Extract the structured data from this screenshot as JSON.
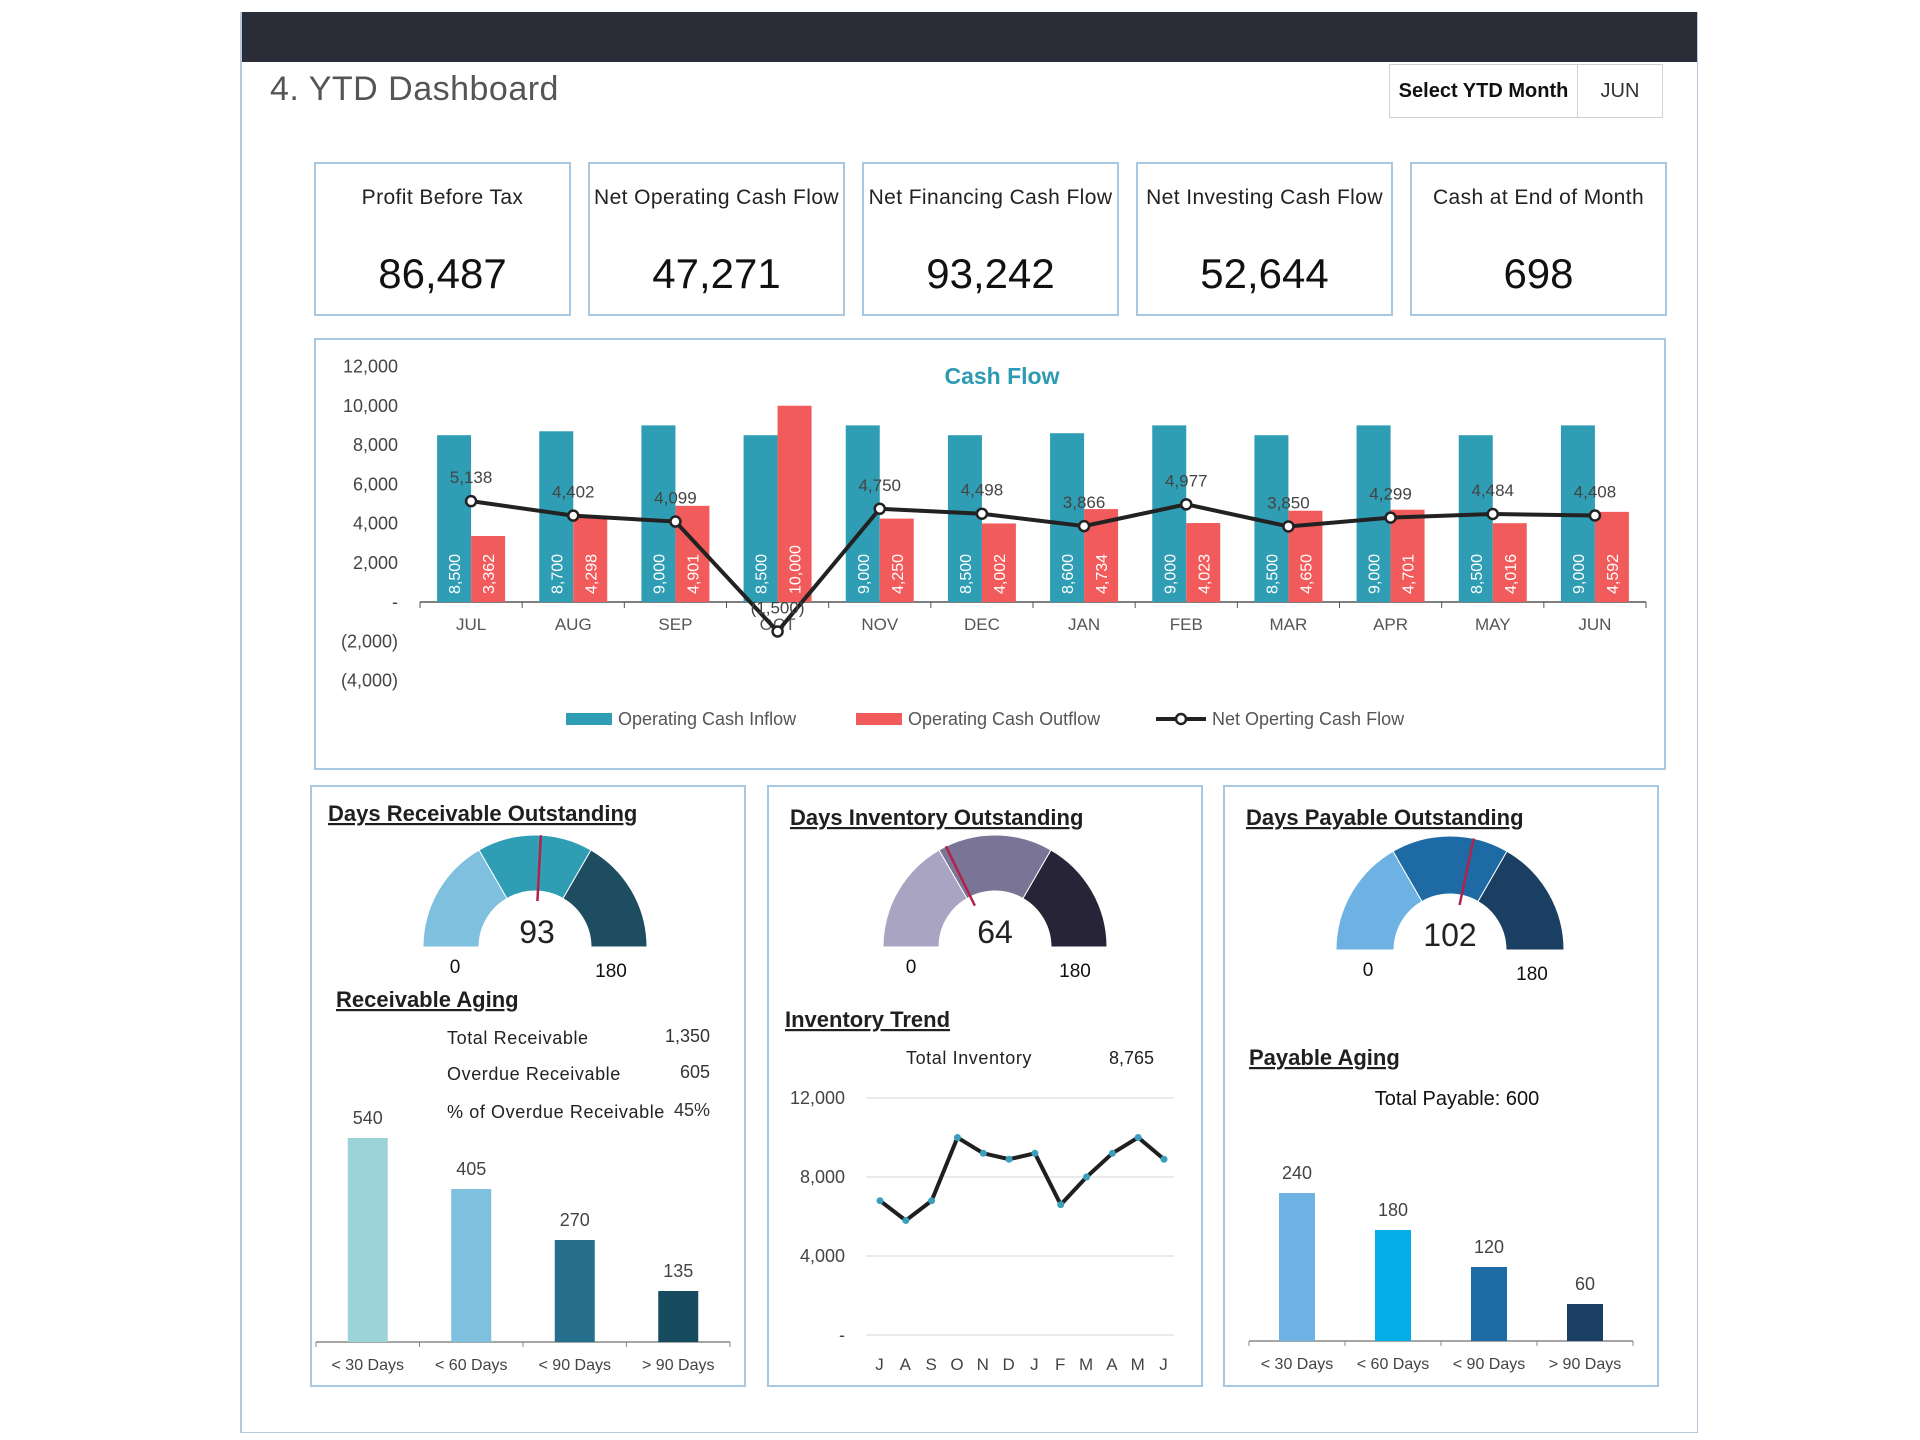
{
  "header": {
    "title": "4. YTD Dashboard",
    "select_label": "Select YTD Month",
    "select_value": "JUN"
  },
  "kpis": [
    {
      "label": "Profit Before Tax",
      "value": "86,487"
    },
    {
      "label": "Net Operating Cash Flow",
      "value": "47,271"
    },
    {
      "label": "Net Financing Cash Flow",
      "value": "93,242"
    },
    {
      "label": "Net Investing Cash Flow",
      "value": "52,644"
    },
    {
      "label": "Cash at End of Month",
      "value": "698"
    }
  ],
  "colors": {
    "inflow": "#2f9db3",
    "outflow": "#f25b5b",
    "net": "#222222",
    "title_teal": "#2e9ab3",
    "dro_gauge": [
      "#7ec0dd",
      "#2f9db3",
      "#1e4c60"
    ],
    "dio_gauge": [
      "#a9a4c2",
      "#7a7597",
      "#262436"
    ],
    "dpo_gauge": [
      "#6db2e2",
      "#1e6aa5",
      "#1a3f62"
    ],
    "recv_bars": [
      "#9cd3d8",
      "#7ec0dd",
      "#256f8c",
      "#174b5f"
    ],
    "pay_bars": [
      "#6db2e2",
      "#06aee8",
      "#1e6aa5",
      "#1a3f62"
    ]
  },
  "chart_data": [
    {
      "type": "bar",
      "title": "Cash Flow",
      "categories": [
        "JUL",
        "AUG",
        "SEP",
        "OCT",
        "NOV",
        "DEC",
        "JAN",
        "FEB",
        "MAR",
        "APR",
        "MAY",
        "JUN"
      ],
      "series": [
        {
          "name": "Operating Cash Inflow",
          "kind": "bar",
          "values": [
            8500,
            8700,
            9000,
            8500,
            9000,
            8500,
            8600,
            9000,
            8500,
            9000,
            8500,
            9000
          ],
          "labels": [
            "8,500",
            "8,700",
            "9,000",
            "8,500",
            "9,000",
            "8,500",
            "8,600",
            "9,000",
            "8,500",
            "9,000",
            "8,500",
            "9,000"
          ]
        },
        {
          "name": "Operating Cash Outflow",
          "kind": "bar",
          "values": [
            3362,
            4298,
            4901,
            10000,
            4250,
            4002,
            4734,
            4023,
            4650,
            4701,
            4016,
            4592
          ],
          "labels": [
            "3,362",
            "4,298",
            "4,901",
            "10,000",
            "4,250",
            "4,002",
            "4,734",
            "4,023",
            "4,650",
            "4,701",
            "4,016",
            "4,592"
          ]
        },
        {
          "name": "Net Operting Cash Flow",
          "kind": "line",
          "values": [
            5138,
            4402,
            4099,
            -1500,
            4750,
            4498,
            3866,
            4977,
            3850,
            4299,
            4484,
            4408
          ],
          "labels": [
            "5,138",
            "4,402",
            "4,099",
            "(1,500)",
            "4,750",
            "4,498",
            "3,866",
            "4,977",
            "3,850",
            "4,299",
            "4,484",
            "4,408"
          ]
        }
      ],
      "ylim": [
        -4000,
        12000
      ],
      "yticks": [
        12000,
        10000,
        8000,
        6000,
        4000,
        2000,
        0,
        -2000,
        -4000
      ],
      "ytick_labels": [
        "12,000",
        "10,000",
        "8,000",
        "6,000",
        "4,000",
        "2,000",
        "-",
        "(2,000)",
        "(4,000)"
      ],
      "legend": "bottom"
    },
    {
      "type": "gauge",
      "title": "Days Receivable Outstanding",
      "value": 93,
      "min": 0,
      "max": 180,
      "value_label": "93",
      "min_label": "0",
      "max_label": "180"
    },
    {
      "type": "bar",
      "title": "Receivable Aging",
      "categories": [
        "< 30 Days",
        "< 60 Days",
        "< 90 Days",
        "> 90 Days"
      ],
      "values": [
        540,
        405,
        270,
        135
      ],
      "labels": [
        "540",
        "405",
        "270",
        "135"
      ],
      "summary": [
        {
          "label": "Total Receivable",
          "value": "1,350"
        },
        {
          "label": "Overdue Receivable",
          "value": "605"
        },
        {
          "label": "% of Overdue Receivable",
          "value": "45%"
        }
      ]
    },
    {
      "type": "gauge",
      "title": "Days Inventory Outstanding",
      "value": 64,
      "min": 0,
      "max": 180,
      "value_label": "64",
      "min_label": "0",
      "max_label": "180"
    },
    {
      "type": "line",
      "title": "Inventory Trend",
      "summary_label": "Total Inventory",
      "summary_value": "8,765",
      "categories": [
        "J",
        "A",
        "S",
        "O",
        "N",
        "D",
        "J",
        "F",
        "M",
        "A",
        "M",
        "J"
      ],
      "values": [
        6800,
        5800,
        6800,
        10000,
        9200,
        8900,
        9200,
        6600,
        8000,
        9200,
        10000,
        8900
      ],
      "ylim": [
        0,
        12000
      ],
      "yticks": [
        12000,
        8000,
        4000,
        0
      ],
      "ytick_labels": [
        "12,000",
        "8,000",
        "4,000",
        "-"
      ]
    },
    {
      "type": "gauge",
      "title": "Days Payable Outstanding",
      "value": 102,
      "min": 0,
      "max": 180,
      "value_label": "102",
      "min_label": "0",
      "max_label": "180"
    },
    {
      "type": "bar",
      "title": "Payable Aging",
      "summary": "Total Payable: 600",
      "categories": [
        "< 30 Days",
        "< 60 Days",
        "< 90 Days",
        "> 90 Days"
      ],
      "values": [
        240,
        180,
        120,
        60
      ],
      "labels": [
        "240",
        "180",
        "120",
        "60"
      ]
    }
  ]
}
